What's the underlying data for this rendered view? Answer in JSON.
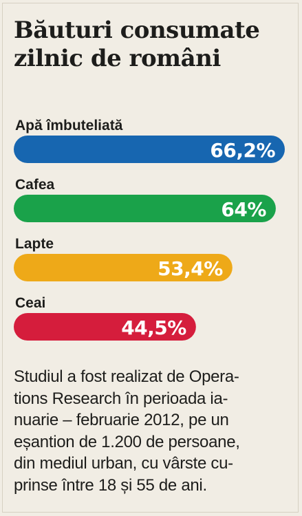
{
  "chart_data": {
    "type": "bar",
    "orientation": "horizontal",
    "title": "Băuturi consumate zilnic de români",
    "title_lines": [
      "Băuturi consumate",
      "zilnic de români"
    ],
    "categories": [
      "Apă îmbuteliată",
      "Cafea",
      "Lapte",
      "Ceai"
    ],
    "values": [
      66.2,
      64,
      53.4,
      44.5
    ],
    "value_labels": [
      "66,2%",
      "64%",
      "53,4%",
      "44,5%"
    ],
    "unit": "%",
    "colors": [
      "#1766b0",
      "#1aa24a",
      "#eea918",
      "#d51d3c"
    ],
    "xlim": [
      0,
      70
    ],
    "grid": false,
    "legend": "none"
  },
  "note": {
    "lines": [
      "Studiul a fost realizat de Opera-",
      "tions Research în perioada ia-",
      "nuarie – februarie 2012, pe un",
      "eșantion de 1.200 de persoane,",
      "din mediul urban, cu vârste cu-",
      "prinse între 18 și 55 de ani."
    ]
  }
}
